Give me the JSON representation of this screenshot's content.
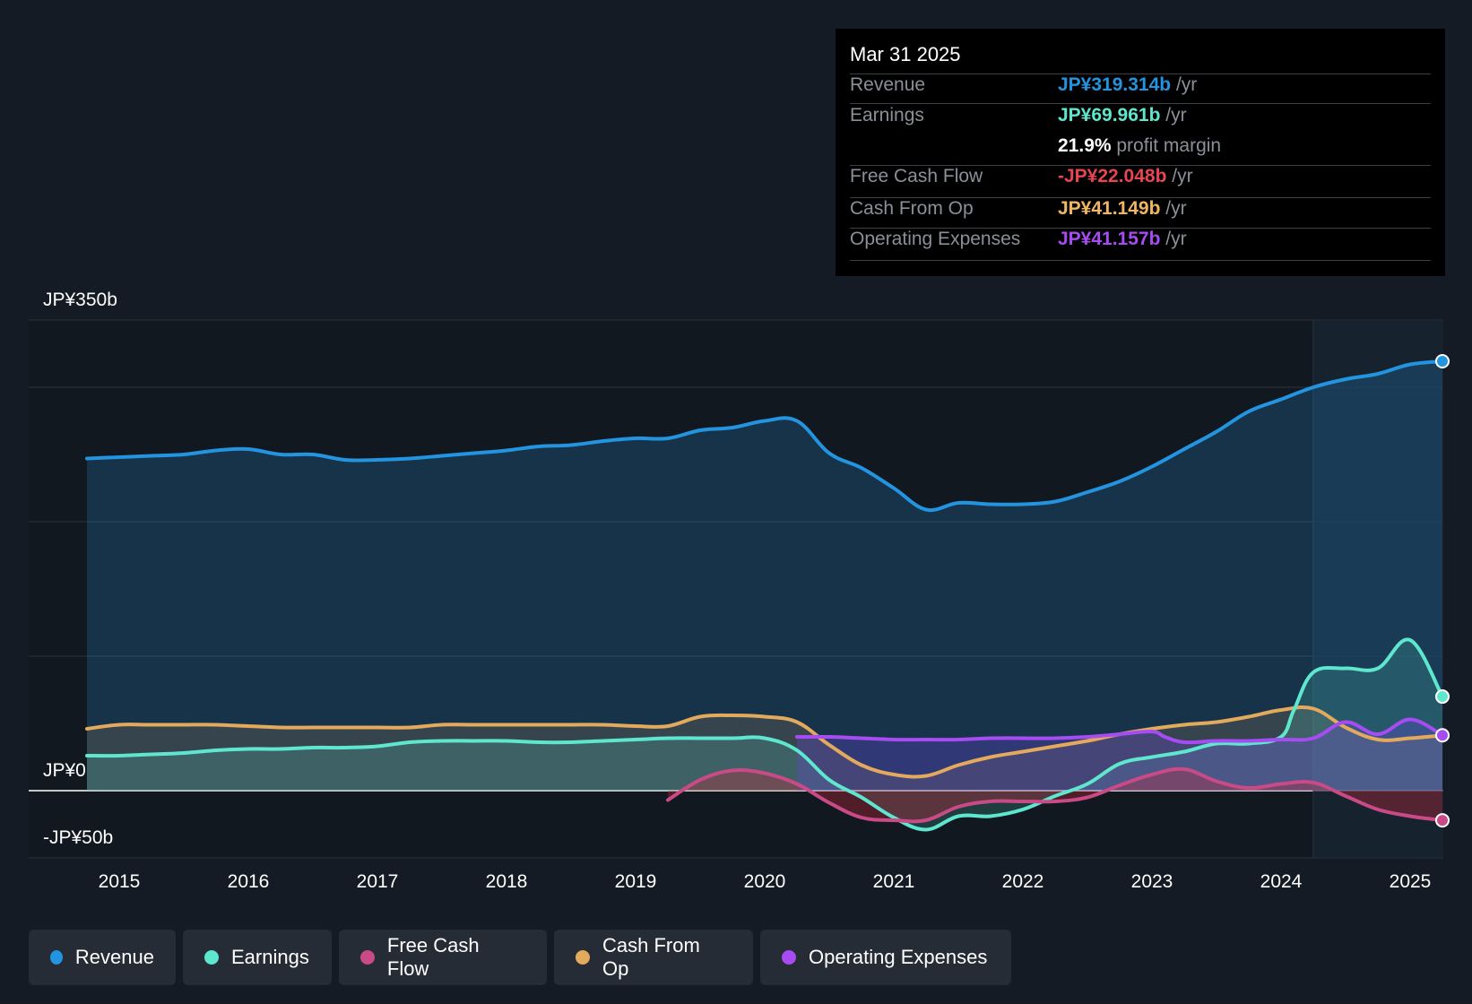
{
  "tooltip": {
    "date": "Mar 31 2025",
    "rows": [
      {
        "label": "Revenue",
        "value": "JP¥319.314b",
        "suffix": " /yr",
        "color": "#2394df"
      },
      {
        "label": "Earnings",
        "value": "JP¥69.961b",
        "suffix": " /yr",
        "color": "#5ee6cf"
      },
      {
        "label": "",
        "value": "21.9%",
        "suffix": " profit margin",
        "color": "#ffffff"
      },
      {
        "label": "Free Cash Flow",
        "value": "-JP¥22.048b",
        "suffix": " /yr",
        "color": "#e64551"
      },
      {
        "label": "Cash From Op",
        "value": "JP¥41.149b",
        "suffix": " /yr",
        "color": "#f2b662"
      },
      {
        "label": "Operating Expenses",
        "value": "JP¥41.157b",
        "suffix": " /yr",
        "color": "#a64cf2"
      }
    ]
  },
  "legend": [
    {
      "label": "Revenue",
      "color": "#2394df"
    },
    {
      "label": "Earnings",
      "color": "#5ee6cf"
    },
    {
      "label": "Free Cash Flow",
      "color": "#c84a86"
    },
    {
      "label": "Cash From Op",
      "color": "#e3a95d"
    },
    {
      "label": "Operating Expenses",
      "color": "#a64cf2"
    }
  ],
  "chart_data": {
    "type": "area",
    "title": "",
    "xlabel": "",
    "ylabel": "",
    "x_ticks": [
      "2015",
      "2016",
      "2017",
      "2018",
      "2019",
      "2020",
      "2021",
      "2022",
      "2023",
      "2024",
      "2025"
    ],
    "y_tick_labels": [
      {
        "value": 350,
        "label": "JP¥350b"
      },
      {
        "value": 0,
        "label": "JP¥0"
      },
      {
        "value": -50,
        "label": "-JP¥50b"
      }
    ],
    "ylim": [
      -50,
      350
    ],
    "xlim": [
      2014.3,
      2025.25
    ],
    "forecast_start": 2024.25,
    "series": [
      {
        "name": "Revenue",
        "color": "#2394df",
        "x": [
          2014.75,
          2015.0,
          2015.25,
          2015.5,
          2015.75,
          2016.0,
          2016.25,
          2016.5,
          2016.75,
          2017.0,
          2017.25,
          2017.5,
          2017.75,
          2018.0,
          2018.25,
          2018.5,
          2018.75,
          2019.0,
          2019.25,
          2019.5,
          2019.75,
          2020.0,
          2020.25,
          2020.5,
          2020.75,
          2021.0,
          2021.25,
          2021.5,
          2021.75,
          2022.0,
          2022.25,
          2022.5,
          2022.75,
          2023.0,
          2023.25,
          2023.5,
          2023.75,
          2024.0,
          2024.25,
          2024.5,
          2024.75,
          2025.0,
          2025.25
        ],
        "y": [
          247,
          248,
          249,
          250,
          253,
          254,
          250,
          250,
          246,
          246,
          247,
          249,
          251,
          253,
          256,
          257,
          260,
          262,
          262,
          268,
          270,
          275,
          275,
          251,
          240,
          225,
          209,
          214,
          213,
          213,
          215,
          222,
          230,
          241,
          254,
          267,
          282,
          291,
          300,
          306,
          310,
          317,
          319.314
        ]
      },
      {
        "name": "Earnings",
        "color": "#5ee6cf",
        "x": [
          2014.75,
          2015.0,
          2015.25,
          2015.5,
          2015.75,
          2016.0,
          2016.25,
          2016.5,
          2016.75,
          2017.0,
          2017.25,
          2017.5,
          2017.75,
          2018.0,
          2018.25,
          2018.5,
          2018.75,
          2019.0,
          2019.25,
          2019.5,
          2019.75,
          2020.0,
          2020.25,
          2020.5,
          2020.75,
          2021.0,
          2021.25,
          2021.5,
          2021.75,
          2022.0,
          2022.25,
          2022.5,
          2022.75,
          2023.0,
          2023.25,
          2023.5,
          2023.75,
          2024.0,
          2024.1,
          2024.25,
          2024.5,
          2024.75,
          2025.0,
          2025.25
        ],
        "y": [
          26,
          26,
          27,
          28,
          30,
          31,
          31,
          32,
          32,
          33,
          36,
          37,
          37,
          37,
          36,
          36,
          37,
          38,
          39,
          39,
          39,
          39,
          30,
          8,
          -5,
          -20,
          -29,
          -19,
          -19,
          -14,
          -4,
          5,
          20,
          25,
          29,
          35,
          35,
          40,
          60,
          88,
          91,
          91,
          112,
          69.961
        ]
      },
      {
        "name": "Cash From Op",
        "color": "#e3a95d",
        "x": [
          2014.75,
          2015.0,
          2015.25,
          2015.5,
          2015.75,
          2016.0,
          2016.25,
          2016.5,
          2016.75,
          2017.0,
          2017.25,
          2017.5,
          2017.75,
          2018.0,
          2018.25,
          2018.5,
          2018.75,
          2019.0,
          2019.25,
          2019.5,
          2019.75,
          2020.0,
          2020.25,
          2020.5,
          2020.75,
          2021.0,
          2021.25,
          2021.5,
          2021.75,
          2022.0,
          2022.25,
          2022.5,
          2022.75,
          2023.0,
          2023.25,
          2023.5,
          2023.75,
          2024.0,
          2024.25,
          2024.5,
          2024.75,
          2025.0,
          2025.25
        ],
        "y": [
          46,
          49,
          49,
          49,
          49,
          48,
          47,
          47,
          47,
          47,
          47,
          49,
          49,
          49,
          49,
          49,
          49,
          48,
          48,
          55,
          56,
          55,
          51,
          34,
          19,
          12,
          11,
          19,
          25,
          29,
          33,
          37,
          42,
          46,
          49,
          51,
          55,
          60,
          61,
          47,
          38,
          39,
          41.149
        ]
      },
      {
        "name": "Free Cash Flow",
        "color": "#c84a86",
        "x": [
          2019.25,
          2019.5,
          2019.75,
          2020.0,
          2020.25,
          2020.5,
          2020.75,
          2021.0,
          2021.25,
          2021.5,
          2021.75,
          2022.0,
          2022.25,
          2022.5,
          2022.75,
          2023.0,
          2023.25,
          2023.5,
          2023.75,
          2024.0,
          2024.25,
          2024.5,
          2024.75,
          2025.0,
          2025.25
        ],
        "y": [
          -7,
          8,
          15,
          13,
          5,
          -9,
          -20,
          -22,
          -22,
          -12,
          -8,
          -8,
          -8,
          -5,
          4,
          12,
          16,
          7,
          2,
          5,
          6,
          -4,
          -14,
          -19,
          -22.048
        ]
      },
      {
        "name": "Operating Expenses",
        "color": "#a64cf2",
        "x": [
          2020.25,
          2020.5,
          2020.75,
          2021.0,
          2021.25,
          2021.5,
          2021.75,
          2022.0,
          2022.25,
          2022.5,
          2022.75,
          2023.0,
          2023.1,
          2023.25,
          2023.5,
          2023.75,
          2024.0,
          2024.25,
          2024.5,
          2024.75,
          2025.0,
          2025.25
        ],
        "y": [
          40,
          40,
          39,
          38,
          38,
          38,
          39,
          39,
          39,
          40,
          42,
          44,
          40,
          36,
          37,
          37,
          38,
          39,
          51,
          42,
          53,
          41.157
        ]
      }
    ]
  }
}
